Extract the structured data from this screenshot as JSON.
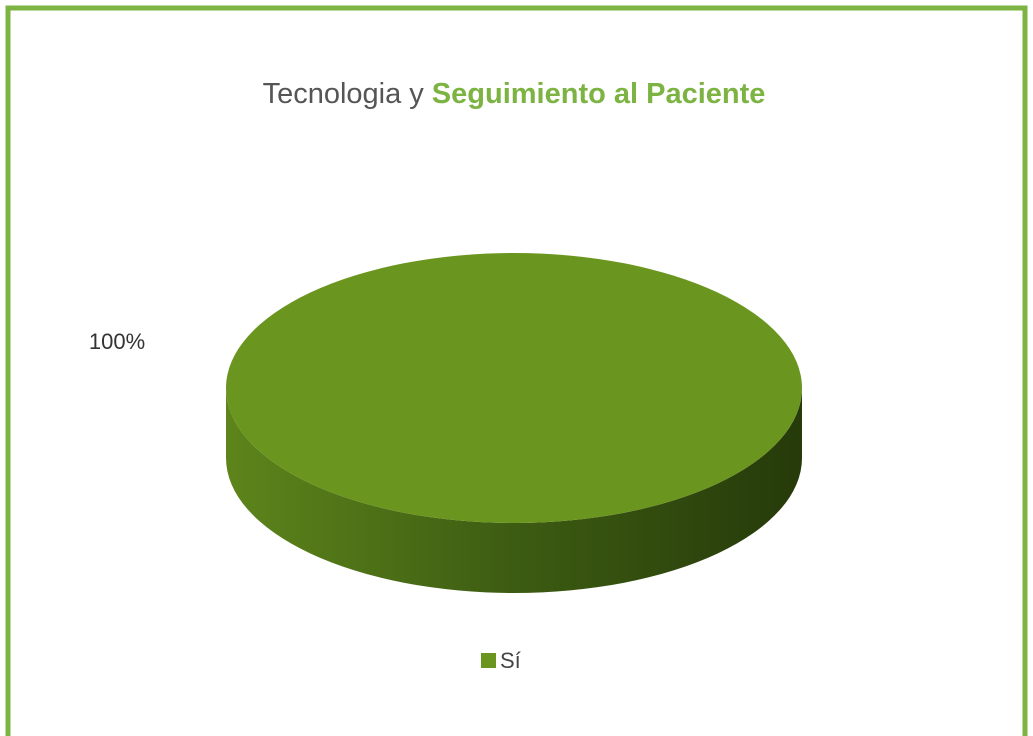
{
  "chart_data": {
    "type": "pie",
    "title": [
      "Tecnologia y",
      "Seguimiento al Paciente"
    ],
    "categories": [
      "Sí"
    ],
    "values": [
      100
    ],
    "value_labels": [
      "100%"
    ],
    "colors": [
      "#6a961f"
    ],
    "legend": "bottom"
  }
}
